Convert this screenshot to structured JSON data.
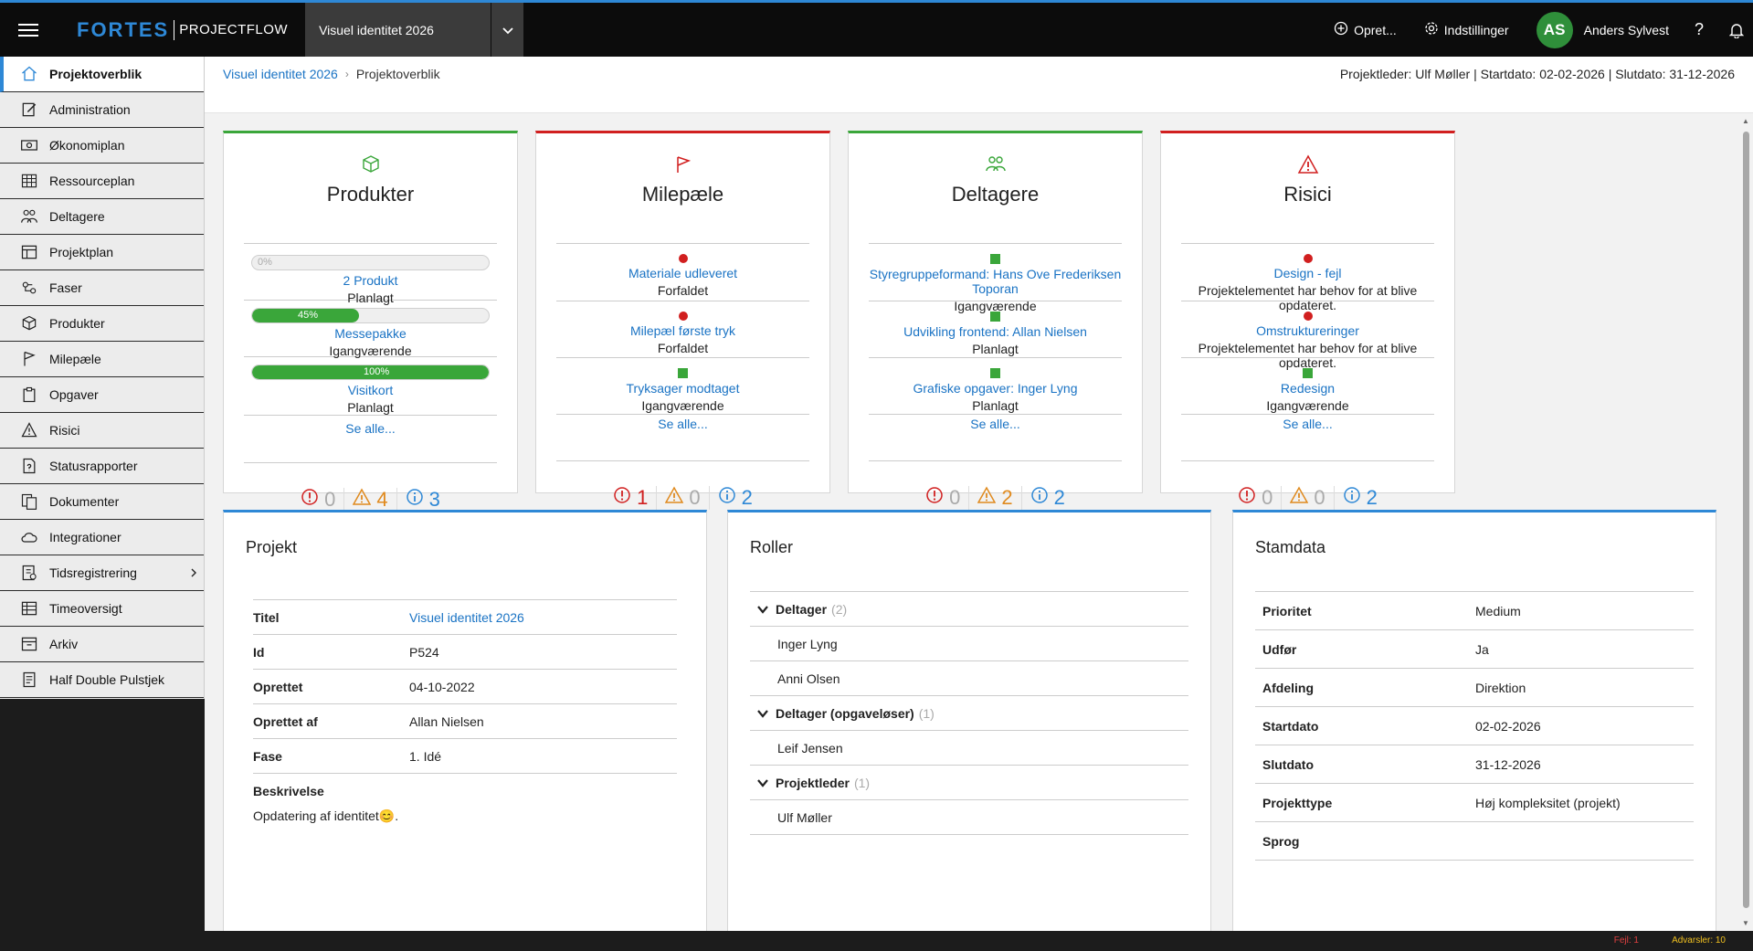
{
  "topbar": {
    "brand": "FORTES",
    "product": "PROJECTFLOW",
    "project_name": "Visuel identitet 2026",
    "create_label": "Opret...",
    "settings_label": "Indstillinger",
    "user_initials": "AS",
    "user_name": "Anders Sylvest",
    "help_label": "?"
  },
  "sidebar": {
    "items": [
      {
        "label": "Projektoverblik",
        "icon": "home-icon",
        "active": true
      },
      {
        "label": "Administration",
        "icon": "edit-icon"
      },
      {
        "label": "Økonomiplan",
        "icon": "money-icon"
      },
      {
        "label": "Ressourceplan",
        "icon": "resource-grid-icon"
      },
      {
        "label": "Deltagere",
        "icon": "people-icon"
      },
      {
        "label": "Projektplan",
        "icon": "plan-grid-icon"
      },
      {
        "label": "Faser",
        "icon": "phases-icon"
      },
      {
        "label": "Produkter",
        "icon": "box-icon"
      },
      {
        "label": "Milepæle",
        "icon": "flag-icon"
      },
      {
        "label": "Opgaver",
        "icon": "clipboard-icon"
      },
      {
        "label": "Risici",
        "icon": "warning-icon"
      },
      {
        "label": "Statusrapporter",
        "icon": "report-icon"
      },
      {
        "label": "Dokumenter",
        "icon": "documents-icon"
      },
      {
        "label": "Integrationer",
        "icon": "cloud-icon"
      },
      {
        "label": "Tidsregistrering",
        "icon": "time-register-icon"
      },
      {
        "label": "Timeoversigt",
        "icon": "table-icon"
      },
      {
        "label": "Arkiv",
        "icon": "archive-icon"
      },
      {
        "label": "Half Double Pulstjek",
        "icon": "pulse-check-icon"
      }
    ]
  },
  "header": {
    "breadcrumb_root": "Visuel identitet 2026",
    "breadcrumb_sep": "›",
    "breadcrumb_current": "Projektoverblik",
    "meta": "Projektleder: Ulf Møller | Startdato: 02-02-2026 | Slutdato: 31-12-2026"
  },
  "cards": {
    "produkter": {
      "title": "Produkter",
      "rows": [
        {
          "progress": 0,
          "progress_label": "0%",
          "title": "2 Produkt",
          "status": "Planlagt"
        },
        {
          "progress": 45,
          "progress_label": "45%",
          "title": "Messepakke",
          "status": "Igangværende"
        },
        {
          "progress": 100,
          "progress_label": "100%",
          "title": "Visitkort",
          "status": "Planlagt"
        }
      ],
      "see_all": "Se alle...",
      "errors": "0",
      "warnings": "4",
      "info": "3"
    },
    "milepaele": {
      "title": "Milepæle",
      "rows": [
        {
          "indicator": "red",
          "title": "Materiale udleveret",
          "status": "Forfaldet"
        },
        {
          "indicator": "red",
          "title": "Milepæl første tryk",
          "status": "Forfaldet"
        },
        {
          "indicator": "green",
          "title": "Tryksager modtaget",
          "status": "Igangværende"
        }
      ],
      "see_all": "Se alle...",
      "errors": "1",
      "warnings": "0",
      "info": "2"
    },
    "deltagere": {
      "title": "Deltagere",
      "rows": [
        {
          "indicator": "green",
          "title": "Styregruppeformand: Hans Ove Frederiksen Toporan",
          "status": "Igangværende"
        },
        {
          "indicator": "green",
          "title": "Udvikling frontend: Allan Nielsen",
          "status": "Planlagt"
        },
        {
          "indicator": "green",
          "title": "Grafiske opgaver: Inger Lyng",
          "status": "Planlagt"
        }
      ],
      "see_all": "Se alle...",
      "errors": "0",
      "warnings": "2",
      "info": "2"
    },
    "risici": {
      "title": "Risici",
      "rows": [
        {
          "indicator": "red",
          "title": "Design - fejl",
          "status": "Projektelementet har behov for at blive opdateret."
        },
        {
          "indicator": "red",
          "title": "Omstruktureringer",
          "status": "Projektelementet har behov for at blive opdateret."
        },
        {
          "indicator": "green",
          "title": "Redesign",
          "status": "Igangværende"
        }
      ],
      "see_all": "Se alle...",
      "errors": "0",
      "warnings": "0",
      "info": "2"
    }
  },
  "projekt": {
    "title": "Projekt",
    "fields": [
      {
        "key": "Titel",
        "value": "Visuel identitet 2026",
        "link": true
      },
      {
        "key": "Id",
        "value": "P524"
      },
      {
        "key": "Oprettet",
        "value": "04-10-2022"
      },
      {
        "key": "Oprettet af",
        "value": "Allan Nielsen"
      },
      {
        "key": "Fase",
        "value": "1. Idé"
      }
    ],
    "description_label": "Beskrivelse",
    "description": "Opdatering af identitet😊."
  },
  "roller": {
    "title": "Roller",
    "groups": [
      {
        "name": "Deltager",
        "count": "(2)",
        "members": [
          "Inger Lyng",
          "Anni Olsen"
        ]
      },
      {
        "name": "Deltager (opgaveløser)",
        "count": "(1)",
        "members": [
          "Leif Jensen"
        ]
      },
      {
        "name": "Projektleder",
        "count": "(1)",
        "members": [
          "Ulf Møller"
        ]
      }
    ]
  },
  "stamdata": {
    "title": "Stamdata",
    "fields": [
      {
        "key": "Prioritet",
        "value": "Medium"
      },
      {
        "key": "Udfør",
        "value": "Ja"
      },
      {
        "key": "Afdeling",
        "value": "Direktion"
      },
      {
        "key": "Startdato",
        "value": "02-02-2026"
      },
      {
        "key": "Slutdato",
        "value": "31-12-2026"
      },
      {
        "key": "Projekttype",
        "value": "Høj kompleksitet (projekt)"
      },
      {
        "key": "Sprog",
        "value": ""
      }
    ]
  },
  "statusbar": {
    "errors": "Fejl: 1",
    "warnings": "Advarsler: 10"
  },
  "colors": {
    "accent": "#2e88d6",
    "ok": "#3aa63a",
    "error": "#d11f1f",
    "warning": "#e08a1e"
  }
}
